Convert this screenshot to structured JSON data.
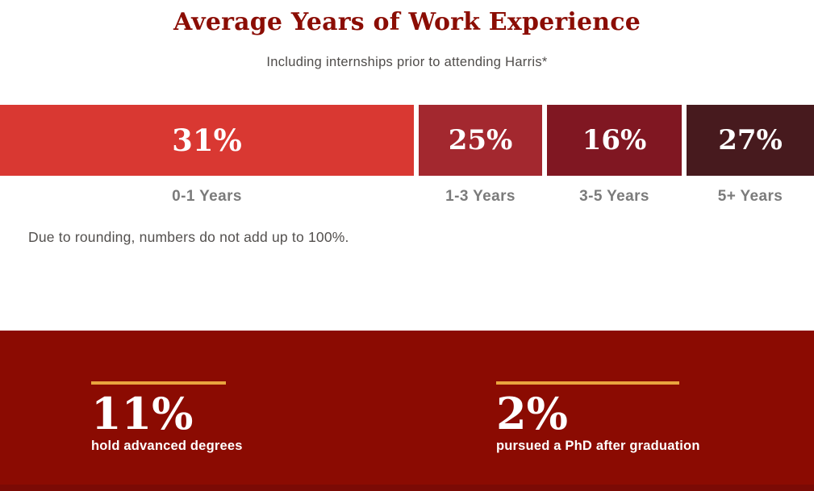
{
  "chart_data": {
    "type": "bar",
    "orientation": "horizontal_stacked",
    "title": "Average Years of Work Experience",
    "subtitle": "Including internships prior to attending Harris*",
    "categories": [
      "0-1 Years",
      "1-3 Years",
      "3-5 Years",
      "5+ Years"
    ],
    "values": [
      31,
      25,
      16,
      27
    ],
    "unit": "%",
    "segment_labels": [
      "31%",
      "25%",
      "16%",
      "27%"
    ],
    "segment_colors": [
      "#d93832",
      "#a3282f",
      "#801722",
      "#471a1e"
    ],
    "note": "Due to rounding, numbers do not add up to 100%.",
    "legend": "none",
    "grid": false
  },
  "stats_band": {
    "background_color": "#8b0b02",
    "divider_color": "#e9a43e",
    "stats": [
      {
        "value": "11%",
        "caption": "hold advanced degrees"
      },
      {
        "value": "2%",
        "caption": "pursued a PhD after graduation"
      }
    ]
  },
  "theme": {
    "title_color": "#8b0d04",
    "subtitle_color": "#4f4c4a",
    "category_label_color": "#7b7b7b",
    "bar_text_color": "#ffffff"
  }
}
